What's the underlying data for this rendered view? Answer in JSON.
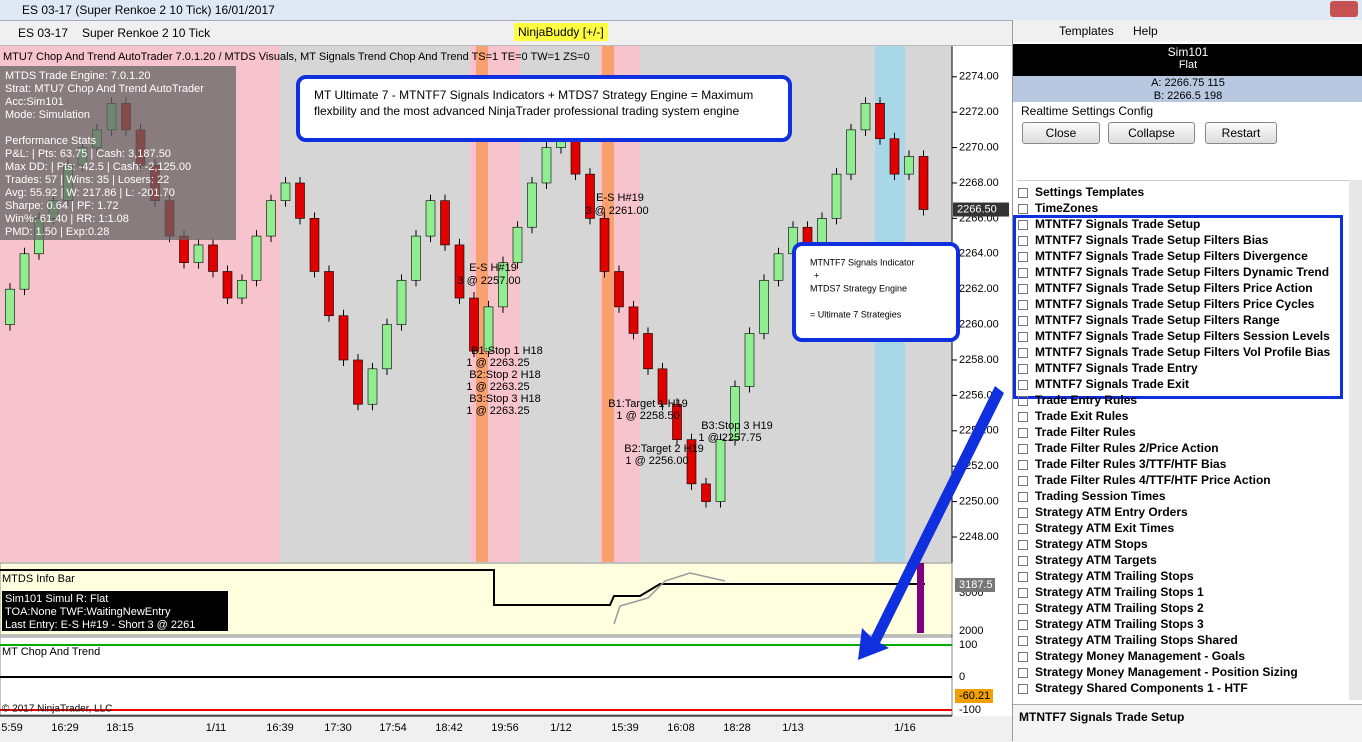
{
  "window_title": "ES 03-17 (Super Renkoe 2  10 Tick)  16/01/2017",
  "toolbar": {
    "instrument": "ES 03-17",
    "period": "Super Renkoe 2  10 Tick",
    "ninjabuddy": "NinjaBuddy [+/-]"
  },
  "chart": {
    "header": "MTU7 Chop And Trend AutoTrader 7.0.1.20 / MTDS Visuals, MT Signals Trend Chop And Trend TS=1 TE=0 TW=1 ZS=0",
    "stats": [
      "MTDS Trade Engine: 7.0.1.20",
      "Strat:  MTU7 Chop And Trend AutoTrader",
      "Acc:Sim101",
      "Mode: Simulation",
      "Performance Stats",
      "P&L: | Pts: 63.75 | Cash: 3,187.50",
      "Max DD: | Pts: -42.5 | Cash: -2,125.00",
      "Trades: 57 | Wins: 35 | Losers: 22",
      "Avg: 55.92 | W: 217.86 | L: -201.70",
      "Sharpe: 0.64 | PF: 1.72",
      "Win%: 61.40 | RR: 1:1.08",
      "PMD: 1.50 | Exp:0.28"
    ],
    "callout_main": [
      "MT Ultimate 7 - MTNTF7 Signals Indicators +  MTDS7  Strategy Engine = Maximum",
      "flexbility and the most advanced NinjaTrader professional trading system engine"
    ],
    "callout_side": [
      "MTNTF7 Signals Indicator",
      "+",
      "MTDS7 Strategy Engine",
      "= Ultimate 7 Strategies"
    ],
    "trade_labels": [
      "E-S H#19",
      "3 @ 2261.00",
      "E-S H#19",
      "3 @ 2257.00",
      "B1:Stop 1 H18",
      "1 @ 2263.25",
      "B2:Stop 2 H18",
      "1 @ 2263.25",
      "B3:Stop 3 H18",
      "1 @ 2263.25",
      "B1:Target 1 H19",
      "1 @ 2258.50",
      "B2:Target 2 H19",
      "1 @ 2256.00",
      "B3:Stop 3 H19",
      "1 @ 2257.75"
    ],
    "ylim": [
      2246.7,
      2275.4
    ],
    "yticks": [
      {
        "value": 2274,
        "label": "2274.00"
      },
      {
        "value": 2272,
        "label": "2272.00"
      },
      {
        "value": 2270,
        "label": "2270.00"
      },
      {
        "value": 2268,
        "label": "2268.00"
      },
      {
        "value": 2266,
        "label": "2266.00"
      },
      {
        "value": 2264,
        "label": "2264.00"
      },
      {
        "value": 2262,
        "label": "2262.00"
      },
      {
        "value": 2260,
        "label": "2260.00"
      },
      {
        "value": 2258,
        "label": "2258.00"
      },
      {
        "value": 2256,
        "label": "2256.00"
      },
      {
        "value": 2254,
        "label": "2254.00"
      },
      {
        "value": 2252,
        "label": "2252.00"
      },
      {
        "value": 2250,
        "label": "2250.00"
      },
      {
        "value": 2248,
        "label": "2248.00"
      }
    ],
    "last": {
      "value": 2266.5,
      "label": "2266.50"
    },
    "bricks": {
      "open": 2260,
      "closes": [
        2262,
        2264,
        2266,
        2267,
        2269,
        2270,
        2271,
        2272.5,
        2271,
        2269,
        2267,
        2265,
        2263.5,
        2264.5,
        2263,
        2261.5,
        2262.5,
        2265,
        2267,
        2268,
        2266,
        2263,
        2260.5,
        2258,
        2255.5,
        2257.5,
        2260,
        2262.5,
        2265,
        2267,
        2264.5,
        2261.5,
        2258.5,
        2261,
        2263.5,
        2265.5,
        2268,
        2270,
        2271,
        2268.5,
        2266,
        2263,
        2261,
        2259.5,
        2257.5,
        2255.5,
        2253.5,
        2251,
        2250,
        2253.5,
        2256.5,
        2259.5,
        2262.5,
        2264,
        2265.5,
        2264,
        2266,
        2268.5,
        2271,
        2272.5,
        2270.5,
        2268.5,
        2269.5,
        2266.5
      ],
      "up_color": "#90ee90",
      "down_color": "#e00000"
    },
    "info_bar": {
      "title": "MTDS Info Bar",
      "lines": [
        "Sim101 Simul  R: Flat",
        "TOA:None TWF:WaitingNewEntry",
        "Last Entry: E-S H#19 - Short 3 @ 2261"
      ],
      "ticks": [
        "3000",
        "2000"
      ],
      "value": "3187.5"
    },
    "chop": {
      "title": "MT Chop And Trend",
      "ticks": [
        "100",
        "0",
        "-100"
      ],
      "value": "-60.21"
    },
    "time_labels": [
      "5:59",
      "16:29",
      "18:15",
      "1/11",
      "16:39",
      "17:30",
      "17:54",
      "18:42",
      "19:56",
      "1/12",
      "15:39",
      "16:08",
      "18:28",
      "1/13",
      "1/16"
    ],
    "copyright": "© 2017 NinjaTrader, LLC"
  },
  "right_panel": {
    "menu": [
      "Templates",
      "Help"
    ],
    "account": "Sim101",
    "position": "Flat",
    "ask": "A: 2266.75 115",
    "bid": "B: 2266.5 198",
    "config_title": "Realtime Settings Config",
    "buttons": [
      "Close",
      "Collapse",
      "Restart"
    ],
    "items_top": [
      "Settings Templates",
      "TimeZones"
    ],
    "items_highlight": [
      "MTNTF7 Signals Trade Setup",
      "MTNTF7 Signals Trade Setup Filters Bias",
      "MTNTF7 Signals Trade Setup Filters Divergence",
      "MTNTF7 Signals Trade Setup Filters Dynamic Trend",
      "MTNTF7 Signals Trade Setup Filters Price Action",
      "MTNTF7 Signals Trade Setup Filters Price Cycles",
      "MTNTF7 Signals Trade Setup Filters Range",
      "MTNTF7 Signals Trade Setup Filters Session Levels",
      "MTNTF7 Signals Trade Setup Filters Vol Profile Bias",
      "MTNTF7 Signals Trade Entry",
      "MTNTF7 Signals Trade Exit"
    ],
    "items_rest": [
      "Trade Entry Rules",
      "Trade Exit Rules",
      "Trade Filter Rules",
      "Trade Filter Rules 2/Price Action",
      "Trade Filter Rules 3/TTF/HTF Bias",
      "Trade Filter Rules 4/TTF/HTF Price Action",
      "Trading Session Times",
      "Strategy ATM Entry Orders",
      "Strategy ATM Exit Times",
      "Strategy ATM Stops",
      "Strategy ATM Targets",
      "Strategy ATM Trailing Stops",
      "Strategy ATM Trailing Stops 1",
      "Strategy ATM Trailing Stops 2",
      "Strategy ATM Trailing Stops 3",
      "Strategy ATM Trailing Stops Shared",
      "Strategy Money Management - Goals",
      "Strategy Money Management - Position Sizing",
      "Strategy Shared Components 1 - HTF"
    ],
    "footer": "MTNTF7 Signals Trade Setup"
  }
}
